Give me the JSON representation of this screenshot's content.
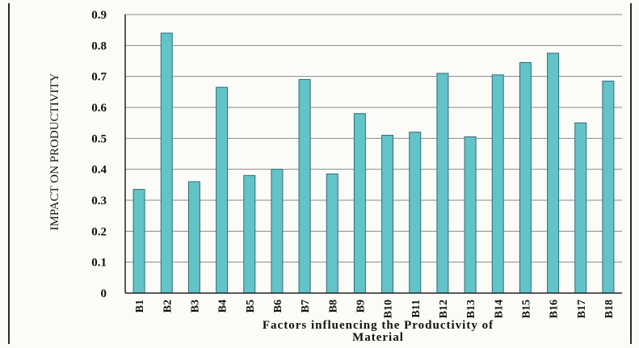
{
  "chart_data": {
    "type": "bar",
    "categories": [
      "B1",
      "B2",
      "B3",
      "B4",
      "B5",
      "B6",
      "B7",
      "B8",
      "B9",
      "B10",
      "B11",
      "B12",
      "B13",
      "B14",
      "B15",
      "B16",
      "B17",
      "B18"
    ],
    "values": [
      0.335,
      0.84,
      0.36,
      0.665,
      0.38,
      0.4,
      0.69,
      0.385,
      0.58,
      0.51,
      0.52,
      0.71,
      0.505,
      0.705,
      0.745,
      0.775,
      0.55,
      0.685
    ],
    "title": "",
    "xlabel_lines": [
      "Factors influencing the Productivity of",
      "Material"
    ],
    "ylabel": "IMPACT ON PRODUCTIVITY",
    "ylim": [
      0,
      0.9
    ],
    "yticks": [
      "0",
      "0.1",
      "0.2",
      "0.3",
      "0.4",
      "0.5",
      "0.6",
      "0.7",
      "0.8",
      "0.9"
    ],
    "grid": true,
    "legend": "none",
    "colors": {
      "bar_fill": "#62c3c9",
      "bar_stroke": "#2f6e73",
      "grid": "#8a8a8a",
      "axis": "#222222"
    }
  }
}
